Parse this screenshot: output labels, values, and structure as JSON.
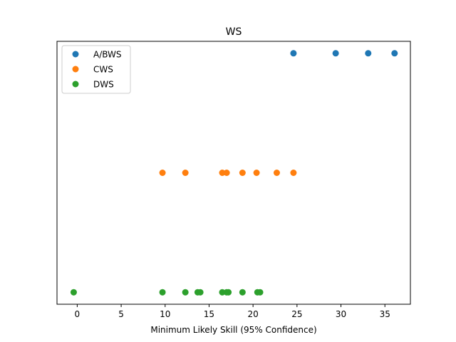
{
  "chart_data": {
    "type": "scatter",
    "title": "WS",
    "xlabel": "Minimum Likely Skill (95% Confidence)",
    "ylabel": "",
    "xlim": [
      -2.3,
      37.9
    ],
    "ylim": [
      -0.1,
      2.1
    ],
    "xticks": [
      0,
      5,
      10,
      15,
      20,
      25,
      30,
      35
    ],
    "yticks_visible": false,
    "grid": false,
    "legend_position": "top-left",
    "series": [
      {
        "name": "A/BWS",
        "color": "#1f77b4",
        "y": 2,
        "x": [
          24.6,
          29.4,
          33.1,
          36.1
        ]
      },
      {
        "name": "CWS",
        "color": "#ff7f0e",
        "y": 1,
        "x": [
          9.7,
          12.3,
          16.5,
          17.0,
          18.8,
          20.4,
          22.7,
          24.6
        ]
      },
      {
        "name": "DWS",
        "color": "#2ca02c",
        "y": 0,
        "x": [
          -0.4,
          9.7,
          12.3,
          13.7,
          14.0,
          16.5,
          17.0,
          17.2,
          18.8,
          20.5,
          20.8
        ]
      }
    ]
  }
}
